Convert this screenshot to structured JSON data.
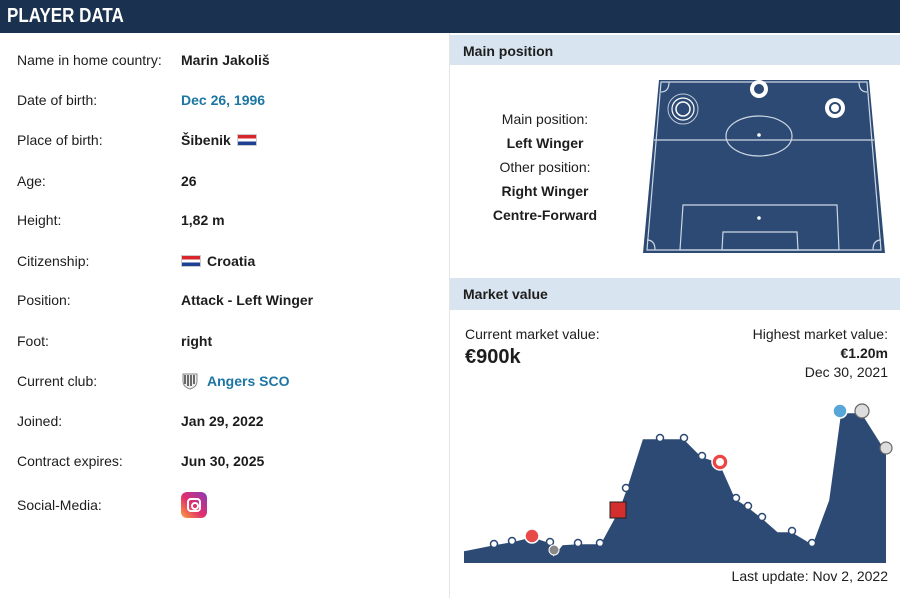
{
  "header": {
    "title": "PLAYER DATA"
  },
  "info": {
    "name_label": "Name in home country:",
    "name": "Marin Jakoliš",
    "dob_label": "Date of birth:",
    "dob": "Dec 26, 1996",
    "pob_label": "Place of birth:",
    "pob": "Šibenik",
    "age_label": "Age:",
    "age": "26",
    "height_label": "Height:",
    "height": "1,82 m",
    "citizenship_label": "Citizenship:",
    "citizenship": "Croatia",
    "position_label": "Position:",
    "position": "Attack - Left Winger",
    "foot_label": "Foot:",
    "foot": "right",
    "club_label": "Current club:",
    "club": "Angers SCO",
    "joined_label": "Joined:",
    "joined": "Jan 29, 2022",
    "contract_label": "Contract expires:",
    "contract": "Jun 30, 2025",
    "social_label": "Social-Media:"
  },
  "main_position": {
    "title": "Main position",
    "main_label": "Main position:",
    "main": "Left Winger",
    "other_label": "Other position:",
    "other": [
      "Right Winger",
      "Centre-Forward"
    ]
  },
  "market_value": {
    "title": "Market value",
    "current_label": "Current market value:",
    "current": "€900k",
    "highest_label": "Highest market value:",
    "highest": "€1.20m",
    "highest_date": "Dec 30, 2021",
    "last_update": "Last update: Nov 2, 2022"
  },
  "colors": {
    "header": "#1a3150",
    "panel_head": "#d8e4ef",
    "link": "#1d75a3",
    "chart_fill": "#2c4a74"
  }
}
